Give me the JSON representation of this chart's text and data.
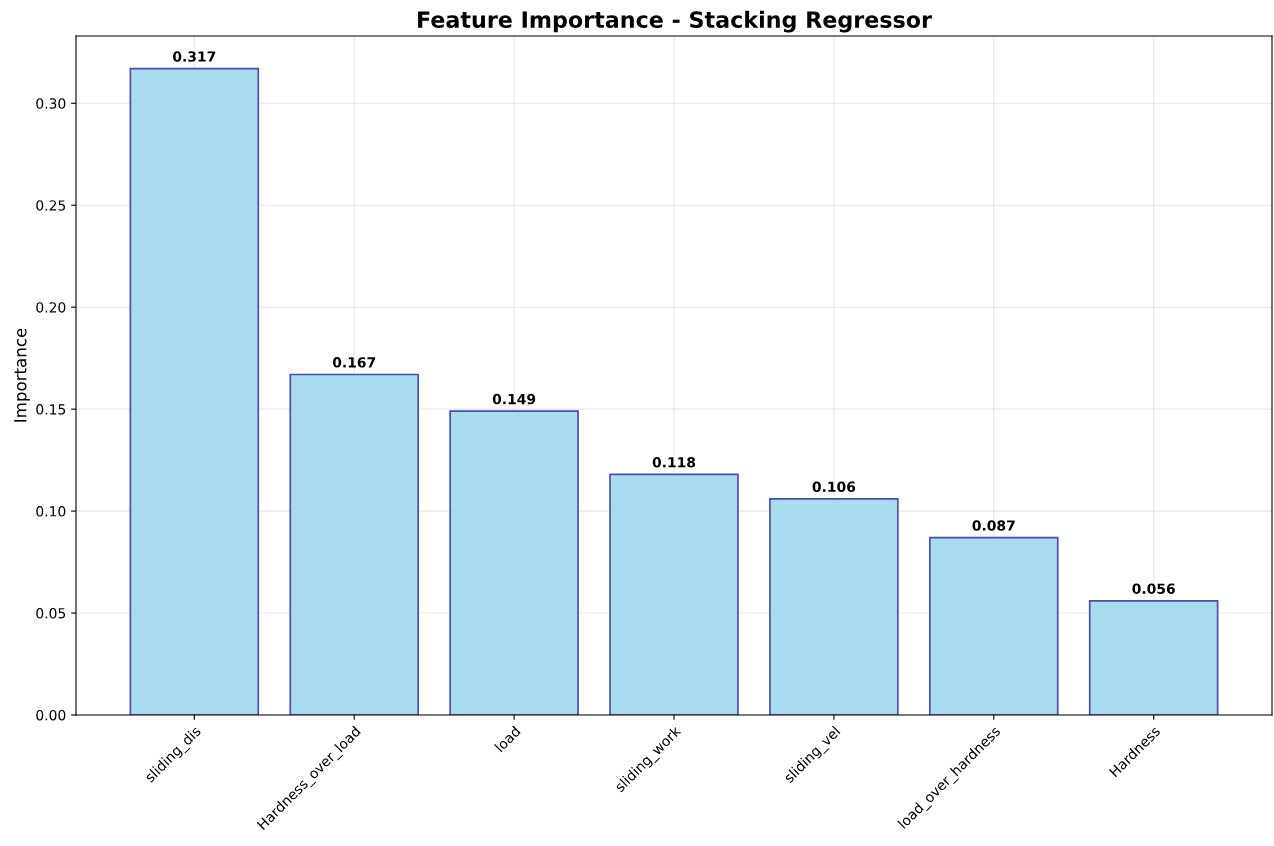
{
  "chart_data": {
    "type": "bar",
    "title": "Feature Importance - Stacking Regressor",
    "ylabel": "Importance",
    "categories": [
      "sliding_dis",
      "Hardness_over_load",
      "load",
      "sliding_work",
      "sliding_vel",
      "load_over_hardness",
      "Hardness"
    ],
    "values": [
      0.317,
      0.167,
      0.149,
      0.118,
      0.106,
      0.087,
      0.056
    ],
    "color": "#a9dbef",
    "ylim": [
      0,
      0.333
    ],
    "yticks": [
      {
        "value": 0,
        "label": "0.00"
      },
      {
        "value": 0.05,
        "label": "0.05"
      },
      {
        "value": 0.1,
        "label": "0.10"
      },
      {
        "value": 0.15,
        "label": "0.15"
      },
      {
        "value": 0.2,
        "label": "0.20"
      },
      {
        "value": 0.25,
        "label": "0.25"
      },
      {
        "value": 0.3,
        "label": "0.30"
      }
    ],
    "grid": true,
    "data_labels": true
  }
}
